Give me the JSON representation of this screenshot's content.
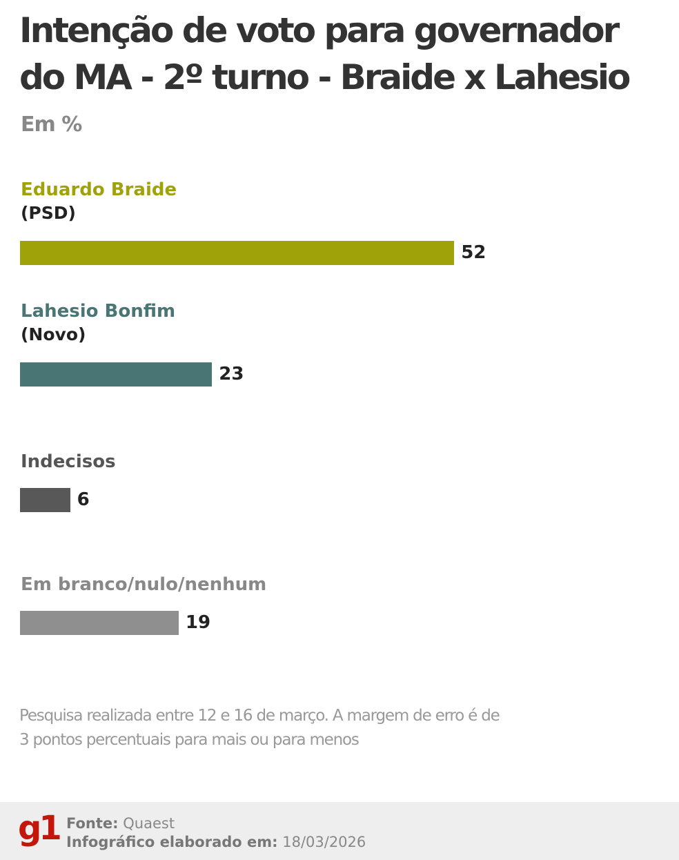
{
  "title": "Intenção de voto para governador do MA - 2º turno - Braide x Lahesio",
  "subtitle": "Em %",
  "chart_data": {
    "type": "bar",
    "orientation": "horizontal",
    "title": "Intenção de voto para governador do MA - 2º turno - Braide x Lahesio",
    "subtitle": "Em %",
    "categories": [
      "Eduardo Braide (PSD)",
      "Lahesio Bonfim (Novo)",
      "Indecisos",
      "Em branco/nulo/nenhum"
    ],
    "items": [
      {
        "name": "Eduardo Braide",
        "party": "(PSD)",
        "value": 52,
        "color": "#a0a20a",
        "label_color": "#a0a20a"
      },
      {
        "name": "Lahesio Bonfim",
        "party": "(Novo)",
        "value": 23,
        "color": "#497575",
        "label_color": "#497575"
      },
      {
        "name": "Indecisos",
        "party": "",
        "value": 6,
        "color": "#585858",
        "label_color": "#555555"
      },
      {
        "name": "Em branco/nulo/nenhum",
        "party": "",
        "value": 19,
        "color": "#8f8f8f",
        "label_color": "#888888"
      }
    ],
    "grid": false,
    "data_labels": true
  },
  "note": "Pesquisa realizada entre 12 e 16 de março. A margem de erro é de 3 pontos percentuais para mais ou para menos",
  "footer": {
    "logo": "g1",
    "source_label": "Fonte:",
    "source": "Quaest",
    "date_label": "Infográfico elaborado em:",
    "date": "18/03/2026"
  }
}
